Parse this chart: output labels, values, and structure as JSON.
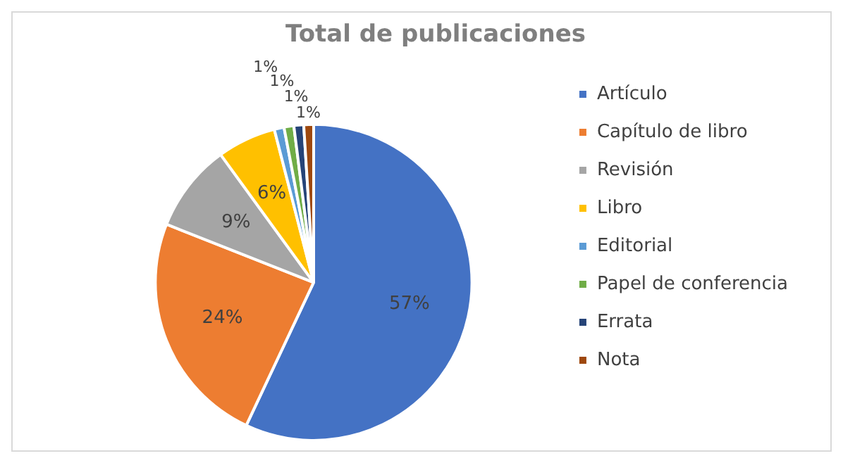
{
  "chart_data": {
    "type": "pie",
    "title": "Total de publicaciones",
    "categories": [
      "Artículo",
      "Capítulo de libro",
      "Revisión",
      "Libro",
      "Editorial",
      "Papel de conferencia",
      "Errata",
      "Nota"
    ],
    "values": [
      57,
      24,
      9,
      6,
      1,
      1,
      1,
      1
    ],
    "value_labels": [
      "57%",
      "24%",
      "9%",
      "6%",
      "1%",
      "1%",
      "1%",
      "1%"
    ],
    "colors": [
      "#4472c4",
      "#ed7d31",
      "#a5a5a5",
      "#ffc000",
      "#5b9bd5",
      "#70ad47",
      "#264478",
      "#9e480e"
    ],
    "legend": "right"
  }
}
